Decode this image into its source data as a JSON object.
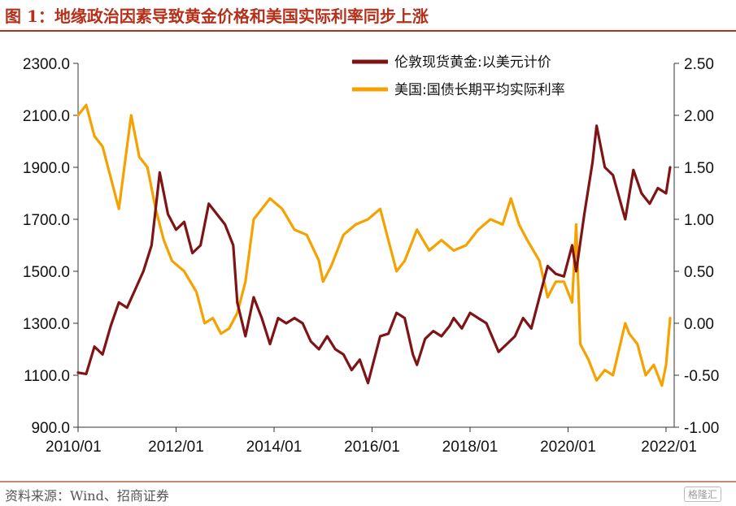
{
  "title": "图 1：地缘政治因素导致黄金价格和美国实际利率同步上涨",
  "source": "资料来源：Wind、招商证券",
  "watermark": "格隆汇",
  "chart_data": {
    "type": "line",
    "title": "",
    "xlabel": "",
    "ylabel": "",
    "x_ticks": [
      "2010/01",
      "2012/01",
      "2014/01",
      "2016/01",
      "2018/01",
      "2020/01",
      "2022/01"
    ],
    "x_range": [
      "2010/01",
      "2022/03"
    ],
    "y_left": {
      "range": [
        900,
        2300
      ],
      "ticks": [
        "900.0",
        "1100.0",
        "1300.0",
        "1500.0",
        "1700.0",
        "1900.0",
        "2100.0",
        "2300.0"
      ]
    },
    "y_right": {
      "range": [
        -1.0,
        2.5
      ],
      "ticks": [
        "-1.00",
        "-0.50",
        "0.00",
        "0.50",
        "1.00",
        "1.50",
        "2.00",
        "2.50"
      ]
    },
    "legend_position": "top-right",
    "grid": false,
    "colors": {
      "gold": "#7f1416",
      "rate": "#f5a200",
      "axis": "#333333"
    },
    "series": [
      {
        "name": "伦敦现货黄金:以美元计价",
        "axis": "left",
        "values": [
          [
            "2010/01",
            1110
          ],
          [
            "2010/03",
            1105
          ],
          [
            "2010/05",
            1210
          ],
          [
            "2010/07",
            1180
          ],
          [
            "2010/09",
            1290
          ],
          [
            "2010/11",
            1380
          ],
          [
            "2011/01",
            1360
          ],
          [
            "2011/03",
            1430
          ],
          [
            "2011/05",
            1500
          ],
          [
            "2011/07",
            1600
          ],
          [
            "2011/09",
            1880
          ],
          [
            "2011/11",
            1720
          ],
          [
            "2012/01",
            1660
          ],
          [
            "2012/03",
            1690
          ],
          [
            "2012/05",
            1570
          ],
          [
            "2012/07",
            1600
          ],
          [
            "2012/09",
            1760
          ],
          [
            "2012/11",
            1720
          ],
          [
            "2013/01",
            1680
          ],
          [
            "2013/03",
            1600
          ],
          [
            "2013/04",
            1380
          ],
          [
            "2013/06",
            1250
          ],
          [
            "2013/08",
            1400
          ],
          [
            "2013/10",
            1320
          ],
          [
            "2013/12",
            1220
          ],
          [
            "2014/02",
            1320
          ],
          [
            "2014/04",
            1300
          ],
          [
            "2014/06",
            1320
          ],
          [
            "2014/08",
            1300
          ],
          [
            "2014/10",
            1230
          ],
          [
            "2014/12",
            1200
          ],
          [
            "2015/02",
            1250
          ],
          [
            "2015/04",
            1200
          ],
          [
            "2015/06",
            1180
          ],
          [
            "2015/08",
            1120
          ],
          [
            "2015/10",
            1160
          ],
          [
            "2015/12",
            1070
          ],
          [
            "2016/03",
            1250
          ],
          [
            "2016/05",
            1260
          ],
          [
            "2016/07",
            1340
          ],
          [
            "2016/09",
            1320
          ],
          [
            "2016/11",
            1180
          ],
          [
            "2016/12",
            1140
          ],
          [
            "2017/02",
            1240
          ],
          [
            "2017/04",
            1270
          ],
          [
            "2017/06",
            1250
          ],
          [
            "2017/08",
            1290
          ],
          [
            "2017/09",
            1320
          ],
          [
            "2017/11",
            1280
          ],
          [
            "2018/01",
            1340
          ],
          [
            "2018/03",
            1320
          ],
          [
            "2018/05",
            1300
          ],
          [
            "2018/08",
            1190
          ],
          [
            "2018/10",
            1220
          ],
          [
            "2018/12",
            1250
          ],
          [
            "2019/02",
            1320
          ],
          [
            "2019/04",
            1280
          ],
          [
            "2019/06",
            1400
          ],
          [
            "2019/08",
            1520
          ],
          [
            "2019/10",
            1490
          ],
          [
            "2019/12",
            1480
          ],
          [
            "2020/02",
            1600
          ],
          [
            "2020/03",
            1500
          ],
          [
            "2020/05",
            1720
          ],
          [
            "2020/07",
            1920
          ],
          [
            "2020/08",
            2060
          ],
          [
            "2020/10",
            1900
          ],
          [
            "2020/12",
            1870
          ],
          [
            "2021/03",
            1700
          ],
          [
            "2021/05",
            1890
          ],
          [
            "2021/07",
            1800
          ],
          [
            "2021/09",
            1760
          ],
          [
            "2021/11",
            1820
          ],
          [
            "2022/01",
            1800
          ],
          [
            "2022/02",
            1900
          ]
        ]
      },
      {
        "name": "美国:国债长期平均实际利率",
        "axis": "right",
        "values": [
          [
            "2010/01",
            2.0
          ],
          [
            "2010/03",
            2.1
          ],
          [
            "2010/05",
            1.8
          ],
          [
            "2010/07",
            1.7
          ],
          [
            "2010/09",
            1.4
          ],
          [
            "2010/11",
            1.1
          ],
          [
            "2011/01",
            1.7
          ],
          [
            "2011/02",
            2.0
          ],
          [
            "2011/04",
            1.6
          ],
          [
            "2011/06",
            1.5
          ],
          [
            "2011/08",
            1.1
          ],
          [
            "2011/10",
            0.8
          ],
          [
            "2011/12",
            0.6
          ],
          [
            "2012/03",
            0.5
          ],
          [
            "2012/06",
            0.3
          ],
          [
            "2012/08",
            0.0
          ],
          [
            "2012/10",
            0.05
          ],
          [
            "2012/12",
            -0.1
          ],
          [
            "2013/02",
            -0.05
          ],
          [
            "2013/04",
            0.1
          ],
          [
            "2013/06",
            0.4
          ],
          [
            "2013/08",
            1.0
          ],
          [
            "2013/10",
            1.1
          ],
          [
            "2013/12",
            1.2
          ],
          [
            "2014/03",
            1.1
          ],
          [
            "2014/06",
            0.9
          ],
          [
            "2014/09",
            0.85
          ],
          [
            "2014/12",
            0.6
          ],
          [
            "2015/01",
            0.4
          ],
          [
            "2015/03",
            0.55
          ],
          [
            "2015/06",
            0.85
          ],
          [
            "2015/09",
            0.95
          ],
          [
            "2015/12",
            1.0
          ],
          [
            "2016/03",
            1.1
          ],
          [
            "2016/07",
            0.5
          ],
          [
            "2016/09",
            0.6
          ],
          [
            "2016/11",
            0.8
          ],
          [
            "2016/12",
            0.9
          ],
          [
            "2017/03",
            0.7
          ],
          [
            "2017/06",
            0.8
          ],
          [
            "2017/09",
            0.7
          ],
          [
            "2017/12",
            0.75
          ],
          [
            "2018/03",
            0.9
          ],
          [
            "2018/06",
            1.0
          ],
          [
            "2018/09",
            0.95
          ],
          [
            "2018/11",
            1.2
          ],
          [
            "2019/01",
            0.95
          ],
          [
            "2019/03",
            0.8
          ],
          [
            "2019/06",
            0.6
          ],
          [
            "2019/08",
            0.25
          ],
          [
            "2019/10",
            0.4
          ],
          [
            "2019/12",
            0.4
          ],
          [
            "2020/02",
            0.2
          ],
          [
            "2020/03",
            0.95
          ],
          [
            "2020/04",
            -0.2
          ],
          [
            "2020/06",
            -0.35
          ],
          [
            "2020/08",
            -0.55
          ],
          [
            "2020/10",
            -0.45
          ],
          [
            "2020/12",
            -0.5
          ],
          [
            "2021/03",
            0.0
          ],
          [
            "2021/04",
            -0.1
          ],
          [
            "2021/06",
            -0.2
          ],
          [
            "2021/08",
            -0.5
          ],
          [
            "2021/10",
            -0.4
          ],
          [
            "2021/12",
            -0.6
          ],
          [
            "2022/01",
            -0.4
          ],
          [
            "2022/02",
            0.05
          ]
        ]
      }
    ]
  }
}
